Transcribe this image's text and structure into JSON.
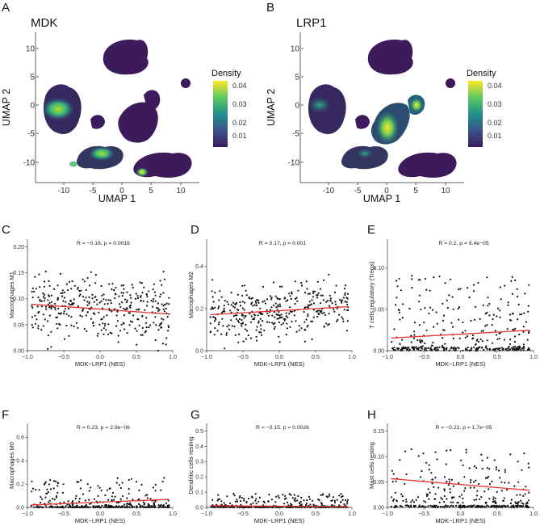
{
  "figure": {
    "umap_panels": [
      {
        "letter": "A",
        "gene": "MDK",
        "xlabel": "UMAP 1",
        "ylabel": "UMAP 2",
        "xticks": [
          "-10",
          "-5",
          "0",
          "5",
          "10"
        ],
        "yticks": [
          "10",
          "5",
          "0",
          "-5",
          "-10"
        ],
        "legend_title": "Density",
        "legend_ticks": [
          "0.04",
          "0.03",
          "0.02",
          "0.01"
        ]
      },
      {
        "letter": "B",
        "gene": "LRP1",
        "xlabel": "UMAP 1",
        "ylabel": "UMAP 2",
        "xticks": [
          "-10",
          "-5",
          "0",
          "5",
          "10"
        ],
        "yticks": [
          "10",
          "5",
          "0",
          "-5",
          "-10"
        ],
        "legend_title": "Density",
        "legend_ticks": [
          "0.04",
          "0.03",
          "0.02",
          "0.01"
        ]
      }
    ],
    "colors": {
      "low_density": "#3b1c5a",
      "mid_density": "#21908c",
      "high_density": "#fde725",
      "points": "#111111",
      "fit_line": "#e3342f"
    }
  },
  "chart_data": [
    {
      "type": "scatter",
      "panel": "C",
      "xlabel": "MDK−LRP1 (NES)",
      "ylabel": "Macrophages M1",
      "annotation": "R = −0.16, p = 0.0016",
      "xlim": [
        -1.0,
        1.0
      ],
      "ylim": [
        0.0,
        0.215
      ],
      "xticks": [
        "−1.0",
        "−0.5",
        "0.0",
        "0.5",
        "1.0"
      ],
      "yticks": [
        0.0,
        0.05,
        0.1,
        0.15,
        0.2
      ],
      "ytick_labels": [
        "0.00",
        "0.05",
        "0.10",
        "0.15",
        "0.20"
      ],
      "fit": {
        "intercept": 0.08,
        "slope": -0.01
      },
      "points_n": 360,
      "y_mean": 0.08,
      "y_spread": 0.05
    },
    {
      "type": "scatter",
      "panel": "D",
      "xlabel": "MDK−LRP1 (NES)",
      "ylabel": "Macrophages M2",
      "annotation": "R = 0.17, p = 0.001",
      "xlim": [
        -1.0,
        1.0
      ],
      "ylim": [
        0.0,
        0.53
      ],
      "xticks": [
        "−1.0",
        "−0.5",
        "0.0",
        "0.5",
        "1.0"
      ],
      "yticks": [
        0.0,
        0.2,
        0.4
      ],
      "ytick_labels": [
        "0.0",
        "0.2",
        "0.4"
      ],
      "fit": {
        "intercept": 0.19,
        "slope": 0.02
      },
      "points_n": 360,
      "y_mean": 0.19,
      "y_spread": 0.11
    },
    {
      "type": "scatter",
      "panel": "E",
      "xlabel": "MDK−LRP1 (NES)",
      "ylabel": "T cells regulatory (Tregs)",
      "annotation": "R = 0.2, p = 9.4e−05",
      "xlim": [
        -1.0,
        1.0
      ],
      "ylim": [
        0.0,
        0.135
      ],
      "xticks": [
        "−1.0",
        "−0.5",
        "0.0",
        "0.5",
        "1.0"
      ],
      "yticks": [
        0.0,
        0.05,
        0.1
      ],
      "ytick_labels": [
        "0.00",
        "0.05",
        "0.10"
      ],
      "fit": {
        "intercept": 0.02,
        "slope": 0.005
      },
      "points_n": 360,
      "y_mean": 0.02,
      "y_spread": 0.03
    },
    {
      "type": "scatter",
      "panel": "F",
      "xlabel": "MDK−LRP1 (NES)",
      "ylabel": "Macrophages M0",
      "annotation": "R = 0.23, p = 2.9e−06",
      "xlim": [
        -1.0,
        1.0
      ],
      "ylim": [
        0.0,
        0.72
      ],
      "xticks": [
        "−1.0",
        "−0.5",
        "0.0",
        "0.5",
        "1.0"
      ],
      "yticks": [
        0.0,
        0.2,
        0.4,
        0.6
      ],
      "ytick_labels": [
        "0.0",
        "0.2",
        "0.4",
        "0.6"
      ],
      "fit": {
        "intercept": 0.045,
        "slope": 0.025
      },
      "points_n": 360,
      "y_mean": 0.04,
      "y_spread": 0.08
    },
    {
      "type": "scatter",
      "panel": "G",
      "xlabel": "MDK−LRP1 (NES)",
      "ylabel": "Dendritic cells resting",
      "annotation": "R = −0.15, p = 0.0026",
      "xlim": [
        -1.0,
        1.0
      ],
      "ylim": [
        0.0,
        0.55
      ],
      "xticks": [
        "−1.0",
        "−0.5",
        "0.0",
        "0.5",
        "1.0"
      ],
      "yticks": [
        0.0,
        0.1,
        0.2,
        0.3,
        0.4,
        0.5
      ],
      "ytick_labels": [
        "0.0",
        "0.1",
        "0.2",
        "0.3",
        "0.4",
        "0.5"
      ],
      "fit": {
        "intercept": 0.008,
        "slope": -0.003
      },
      "points_n": 360,
      "y_mean": 0.01,
      "y_spread": 0.03
    },
    {
      "type": "scatter",
      "panel": "H",
      "xlabel": "MDK−LRP1 (NES)",
      "ylabel": "Mast cells resting",
      "annotation": "R = −0.22, p = 1.7e−05",
      "xlim": [
        -1.0,
        1.0
      ],
      "ylim": [
        0.0,
        0.165
      ],
      "xticks": [
        "−1.0",
        "−0.5",
        "0.0",
        "0.5",
        "1.0"
      ],
      "yticks": [
        0.0,
        0.05,
        0.1,
        0.15
      ],
      "ytick_labels": [
        "0.00",
        "0.05",
        "0.10",
        "0.15"
      ],
      "fit": {
        "intercept": 0.045,
        "slope": -0.012
      },
      "points_n": 360,
      "y_mean": 0.045,
      "y_spread": 0.035
    }
  ]
}
